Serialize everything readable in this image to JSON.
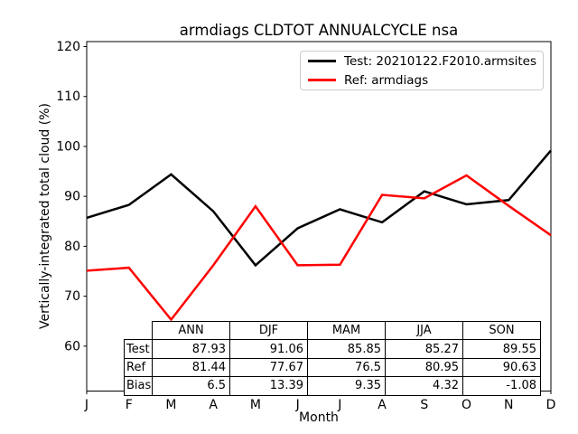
{
  "title": "armdiags CLDTOT ANNUALCYCLE nsa",
  "axes": {
    "xlabel": "Month",
    "ylabel": "Vertically-integrated total cloud (%)"
  },
  "chart_data": {
    "type": "line",
    "title": "armdiags CLDTOT ANNUALCYCLE nsa",
    "xlabel": "Month",
    "ylabel": "Vertically-integrated total cloud (%)",
    "x_ticklabels": [
      "J",
      "F",
      "M",
      "A",
      "M",
      "J",
      "J",
      "A",
      "S",
      "O",
      "N",
      "D"
    ],
    "y_ticks": [
      60,
      70,
      80,
      90,
      100,
      110,
      120
    ],
    "ylim": [
      51,
      121
    ],
    "grid": false,
    "legend_position": "upper right",
    "series": [
      {
        "name": "Test: 20210122.F2010.armsites",
        "color": "#000000",
        "values": [
          85.7,
          88.3,
          94.4,
          87.0,
          76.2,
          83.6,
          87.4,
          84.8,
          91.0,
          88.4,
          89.25,
          99.2
        ]
      },
      {
        "name": "Ref: armdiags",
        "color": "#ff0000",
        "values": [
          75.1,
          75.7,
          65.3,
          76.2,
          88.0,
          76.2,
          76.3,
          90.3,
          89.6,
          94.2,
          88.1,
          82.2
        ]
      }
    ]
  },
  "stats_table": {
    "col_headers": [
      "ANN",
      "DJF",
      "MAM",
      "JJA",
      "SON"
    ],
    "rows": [
      {
        "label": "Test",
        "values": [
          "87.93",
          "91.06",
          "85.85",
          "85.27",
          "89.55"
        ]
      },
      {
        "label": "Ref",
        "values": [
          "81.44",
          "77.67",
          "76.5",
          "80.95",
          "90.63"
        ]
      },
      {
        "label": "Bias",
        "values": [
          "6.5",
          "13.39",
          "9.35",
          "4.32",
          "-1.08"
        ]
      }
    ]
  }
}
